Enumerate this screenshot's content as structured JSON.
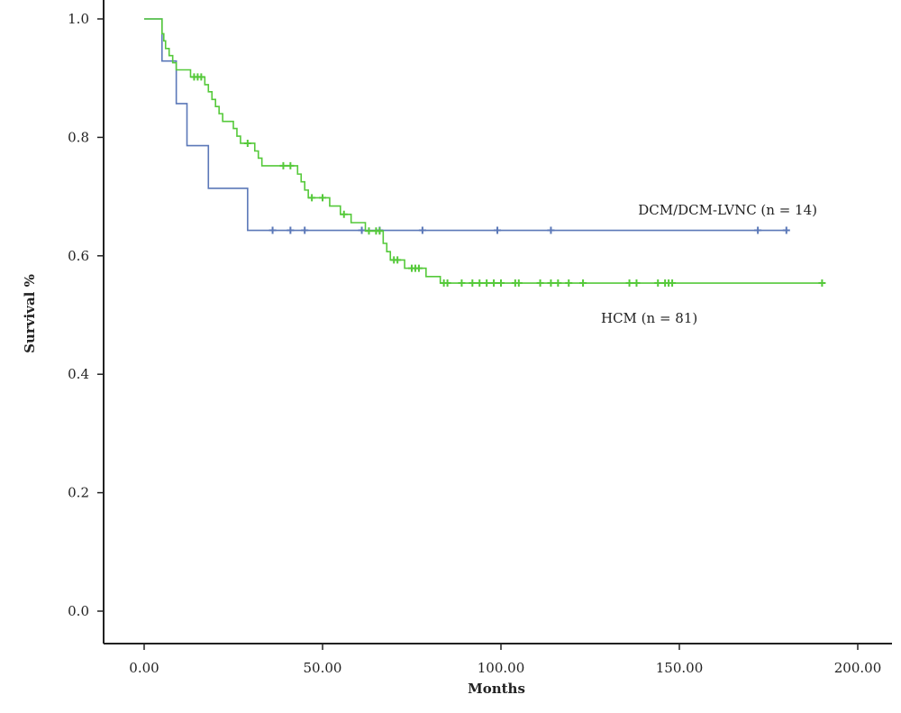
{
  "chart_data": {
    "type": "line",
    "chart_kind": "kaplan-meier survival curve",
    "xlabel": "Months",
    "ylabel": "Survival %",
    "xlim": [
      -10,
      210
    ],
    "ylim": [
      -0.06,
      1.0
    ],
    "x_ticks": [
      0,
      50,
      100,
      150,
      200
    ],
    "x_tick_labels": [
      "0.00",
      "50.00",
      "100.00",
      "150.00",
      "200.00"
    ],
    "y_ticks": [
      0.0,
      0.2,
      0.4,
      0.6,
      0.8,
      1.0
    ],
    "y_tick_labels": [
      "0.0",
      "0.2",
      "0.4",
      "0.6",
      "0.8",
      "1.0"
    ],
    "grid": false,
    "legend": "none (series labeled directly on the plot)",
    "series": [
      {
        "name": "DCM/DCM-LVNC (n = 14)",
        "label": "DCM/DCM-LVNC (n = 14)",
        "color": "#5b78b8",
        "steps": [
          [
            0,
            1.0
          ],
          [
            5,
            0.929
          ],
          [
            9,
            0.857
          ],
          [
            12,
            0.786
          ],
          [
            18,
            0.714
          ],
          [
            29,
            0.643
          ],
          [
            180,
            0.643
          ]
        ],
        "censored": [
          [
            36,
            0.643
          ],
          [
            41,
            0.643
          ],
          [
            45,
            0.643
          ],
          [
            61,
            0.643
          ],
          [
            66,
            0.643
          ],
          [
            78,
            0.643
          ],
          [
            99,
            0.643
          ],
          [
            114,
            0.643
          ],
          [
            172,
            0.643
          ],
          [
            180,
            0.643
          ]
        ]
      },
      {
        "name": "HCM (n = 81)",
        "label": "HCM (n = 81)",
        "color": "#55c93a",
        "steps": [
          [
            0,
            1.0
          ],
          [
            5,
            0.975
          ],
          [
            5.5,
            0.963
          ],
          [
            6,
            0.95
          ],
          [
            7,
            0.938
          ],
          [
            8,
            0.926
          ],
          [
            9,
            0.914
          ],
          [
            13,
            0.902
          ],
          [
            17,
            0.889
          ],
          [
            18,
            0.877
          ],
          [
            19,
            0.864
          ],
          [
            20,
            0.852
          ],
          [
            21,
            0.84
          ],
          [
            22,
            0.827
          ],
          [
            25,
            0.815
          ],
          [
            26,
            0.802
          ],
          [
            27,
            0.79
          ],
          [
            31,
            0.777
          ],
          [
            32,
            0.765
          ],
          [
            33,
            0.752
          ],
          [
            43,
            0.738
          ],
          [
            44,
            0.725
          ],
          [
            45,
            0.711
          ],
          [
            46,
            0.698
          ],
          [
            52,
            0.684
          ],
          [
            55,
            0.67
          ],
          [
            58,
            0.656
          ],
          [
            62,
            0.642
          ],
          [
            67,
            0.621
          ],
          [
            68,
            0.607
          ],
          [
            69,
            0.593
          ],
          [
            73,
            0.579
          ],
          [
            79,
            0.565
          ],
          [
            83,
            0.554
          ],
          [
            190,
            0.554
          ]
        ],
        "censored": [
          [
            14,
            0.902
          ],
          [
            15,
            0.902
          ],
          [
            16,
            0.902
          ],
          [
            29,
            0.79
          ],
          [
            39,
            0.752
          ],
          [
            41,
            0.752
          ],
          [
            47,
            0.698
          ],
          [
            50,
            0.698
          ],
          [
            56,
            0.67
          ],
          [
            63,
            0.642
          ],
          [
            65,
            0.642
          ],
          [
            66,
            0.642
          ],
          [
            70,
            0.593
          ],
          [
            71,
            0.593
          ],
          [
            75,
            0.579
          ],
          [
            76,
            0.579
          ],
          [
            77,
            0.579
          ],
          [
            84,
            0.554
          ],
          [
            85,
            0.554
          ],
          [
            89,
            0.554
          ],
          [
            92,
            0.554
          ],
          [
            94,
            0.554
          ],
          [
            96,
            0.554
          ],
          [
            98,
            0.554
          ],
          [
            100,
            0.554
          ],
          [
            104,
            0.554
          ],
          [
            105,
            0.554
          ],
          [
            111,
            0.554
          ],
          [
            114,
            0.554
          ],
          [
            116,
            0.554
          ],
          [
            119,
            0.554
          ],
          [
            123,
            0.554
          ],
          [
            136,
            0.554
          ],
          [
            138,
            0.554
          ],
          [
            144,
            0.554
          ],
          [
            146,
            0.554
          ],
          [
            147,
            0.554
          ],
          [
            148,
            0.554
          ],
          [
            190,
            0.554
          ]
        ]
      }
    ]
  }
}
